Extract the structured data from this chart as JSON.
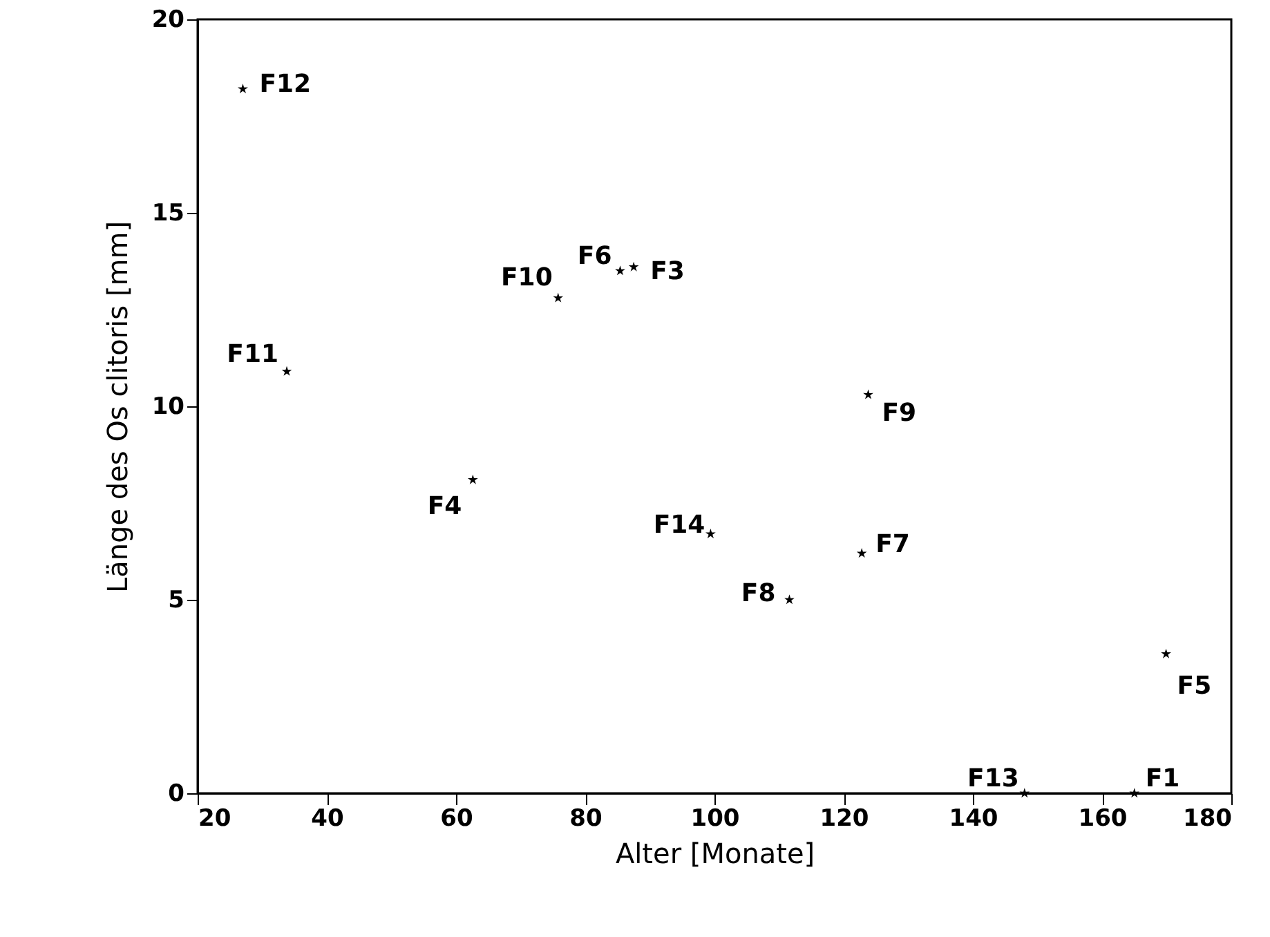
{
  "chart_data": {
    "type": "scatter",
    "xlabel": "Alter [Monate]",
    "ylabel": "Länge des Os clitoris [mm]",
    "x": [
      27,
      33.8,
      62.6,
      75.8,
      85.4,
      87.5,
      99.4,
      111.6,
      122.8,
      123.8,
      169.9,
      148,
      165
    ],
    "series": [
      {
        "color": "#000000",
        "values": [
          18.2,
          10.9,
          8.1,
          12.8,
          13.5,
          13.6,
          6.7,
          5.0,
          6.2,
          10.3,
          3.6,
          0,
          0
        ]
      }
    ],
    "annotations": [
      {
        "text": "F12",
        "x": 27,
        "y": 18.2
      },
      {
        "text": "F11",
        "x": 33.8,
        "y": 10.9
      },
      {
        "text": "F4",
        "x": 62.6,
        "y": 8.1
      },
      {
        "text": "F10",
        "x": 75.8,
        "y": 12.8
      },
      {
        "text": "F6",
        "x": 85.4,
        "y": 13.5
      },
      {
        "text": "F3",
        "x": 87.5,
        "y": 13.6
      },
      {
        "text": "F14",
        "x": 99.4,
        "y": 6.7
      },
      {
        "text": "F8",
        "x": 111.6,
        "y": 5.0
      },
      {
        "text": "F7",
        "x": 122.8,
        "y": 6.2
      },
      {
        "text": "F9",
        "x": 123.8,
        "y": 10.3
      },
      {
        "text": "F5",
        "x": 169.9,
        "y": 3.6
      },
      {
        "text": "F13",
        "x": 148,
        "y": 0
      },
      {
        "text": "F1",
        "x": 165,
        "y": 0
      }
    ],
    "xlim": [
      20,
      180
    ],
    "xticks": [
      20,
      40,
      60,
      80,
      100,
      120,
      140,
      160,
      180
    ],
    "ylim": [
      0,
      20
    ],
    "yticks": [
      0,
      5,
      10,
      15,
      20
    ],
    "marker": "star",
    "grid": false
  }
}
